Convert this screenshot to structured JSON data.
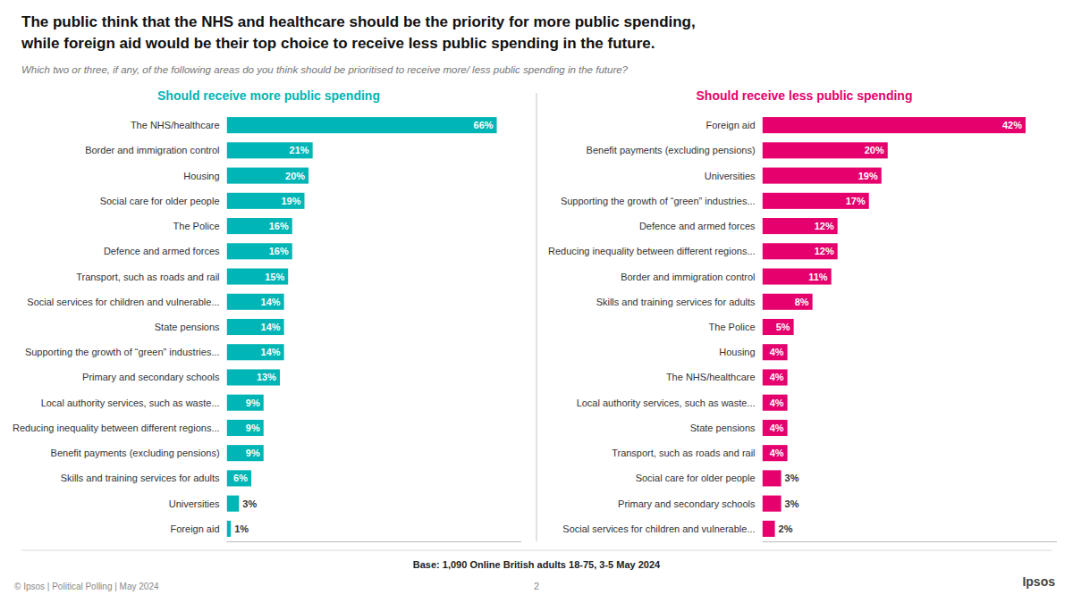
{
  "title": [
    "The public think that the NHS and healthcare should be the priority for more public spending,",
    "while foreign aid would be their top choice to receive less public spending in the future."
  ],
  "subtitle": "Which two or three, if any, of the following areas do you think should be prioritised to receive more/ less public spending in the future?",
  "annotations": [
    "Base: 1,090 Online British adults 18-75, 3-5 May 2024",
    "© Ipsos | Political Polling | May 2024",
    "2",
    "Ipsos"
  ],
  "chart_data": [
    {
      "type": "bar",
      "orientation": "horizontal",
      "title": "Should receive more public spending",
      "categories": [
        "The NHS/healthcare",
        "Border and immigration control",
        "Housing",
        "Social care for older people",
        "The Police",
        "Defence and armed forces",
        "Transport, such as roads and rail",
        "Social services for children and vulnerable...",
        "State pensions",
        "Supporting the growth of “green” industries...",
        "Primary and secondary schools",
        "Local authority services, such as waste...",
        "Reducing inequality between different regions...",
        "Benefit payments (excluding pensions)",
        "Skills and training services for adults",
        "Universities",
        "Foreign aid"
      ],
      "values": [
        66,
        21,
        20,
        19,
        16,
        16,
        15,
        14,
        14,
        14,
        13,
        9,
        9,
        9,
        6,
        3,
        1
      ],
      "value_labels": [
        "66%",
        "21%",
        "20%",
        "19%",
        "16%",
        "16%",
        "15%",
        "14%",
        "14%",
        "14%",
        "13%",
        "9%",
        "9%",
        "9%",
        "6%",
        "3%",
        "1%"
      ],
      "color": "#00b5b5",
      "xlim": [
        0,
        72
      ],
      "data_labels": true,
      "tick_labels": "y",
      "grid": false
    },
    {
      "type": "bar",
      "orientation": "horizontal",
      "title": "Should receive less public spending",
      "categories": [
        "Foreign aid",
        "Benefit payments (excluding pensions)",
        "Universities",
        "Supporting the growth of “green” industries...",
        "Defence and armed forces",
        "Reducing inequality between different regions...",
        "Border and immigration control",
        "Skills and training services for adults",
        "The Police",
        "Housing",
        "The NHS/healthcare",
        "Local authority services, such as waste...",
        "State pensions",
        "Transport, such as roads and rail",
        "Social care for older people",
        "Primary and secondary schools",
        "Social services for children and vulnerable..."
      ],
      "values": [
        42,
        20,
        19,
        17,
        12,
        12,
        11,
        8,
        5,
        4,
        4,
        4,
        4,
        4,
        3,
        3,
        2
      ],
      "value_labels": [
        "42%",
        "20%",
        "19%",
        "17%",
        "12%",
        "12%",
        "11%",
        "8%",
        "5%",
        "4%",
        "4%",
        "4%",
        "4%",
        "4%",
        "3%",
        "3%",
        "2%"
      ],
      "color": "#e5006e",
      "xlim": [
        0,
        47
      ],
      "data_labels": true,
      "tick_labels": "y",
      "grid": false
    }
  ]
}
